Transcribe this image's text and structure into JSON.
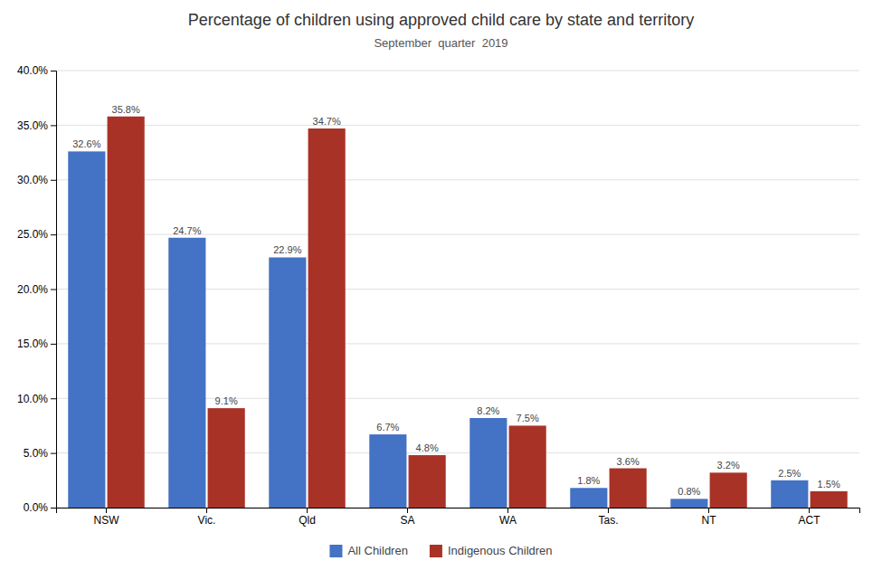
{
  "chart_data": {
    "type": "bar",
    "title": "Percentage of children using approved child care by state and territory",
    "subtitle": "September  quarter  2019",
    "categories": [
      "NSW",
      "Vic.",
      "Qld",
      "SA",
      "WA",
      "Tas.",
      "NT",
      "ACT"
    ],
    "series": [
      {
        "name": "All Children",
        "color": "#4472C4",
        "values": [
          32.6,
          24.7,
          22.9,
          6.7,
          8.2,
          1.8,
          0.8,
          2.5
        ],
        "value_labels": [
          "32.6%",
          "24.7%",
          "22.9%",
          "6.7%",
          "8.2%",
          "1.8%",
          "0.8%",
          "2.5%"
        ]
      },
      {
        "name": "Indigenous Children",
        "color": "#A93226",
        "values": [
          35.8,
          9.1,
          34.7,
          4.8,
          7.5,
          3.6,
          3.2,
          1.5
        ],
        "value_labels": [
          "35.8%",
          "9.1%",
          "34.7%",
          "4.8%",
          "7.5%",
          "3.6%",
          "3.2%",
          "1.5%"
        ]
      }
    ],
    "ylim": [
      0,
      40
    ],
    "yticks": [
      {
        "value": 0,
        "label": "0.0%"
      },
      {
        "value": 5,
        "label": "5.0%"
      },
      {
        "value": 10,
        "label": "10.0%"
      },
      {
        "value": 15,
        "label": "15.0%"
      },
      {
        "value": 20,
        "label": "20.0%"
      },
      {
        "value": 25,
        "label": "25.0%"
      },
      {
        "value": 30,
        "label": "30.0%"
      },
      {
        "value": 35,
        "label": "35.0%"
      },
      {
        "value": 40,
        "label": "40.0%"
      }
    ],
    "grid": true,
    "legend": "bottom",
    "data_labels": true
  }
}
